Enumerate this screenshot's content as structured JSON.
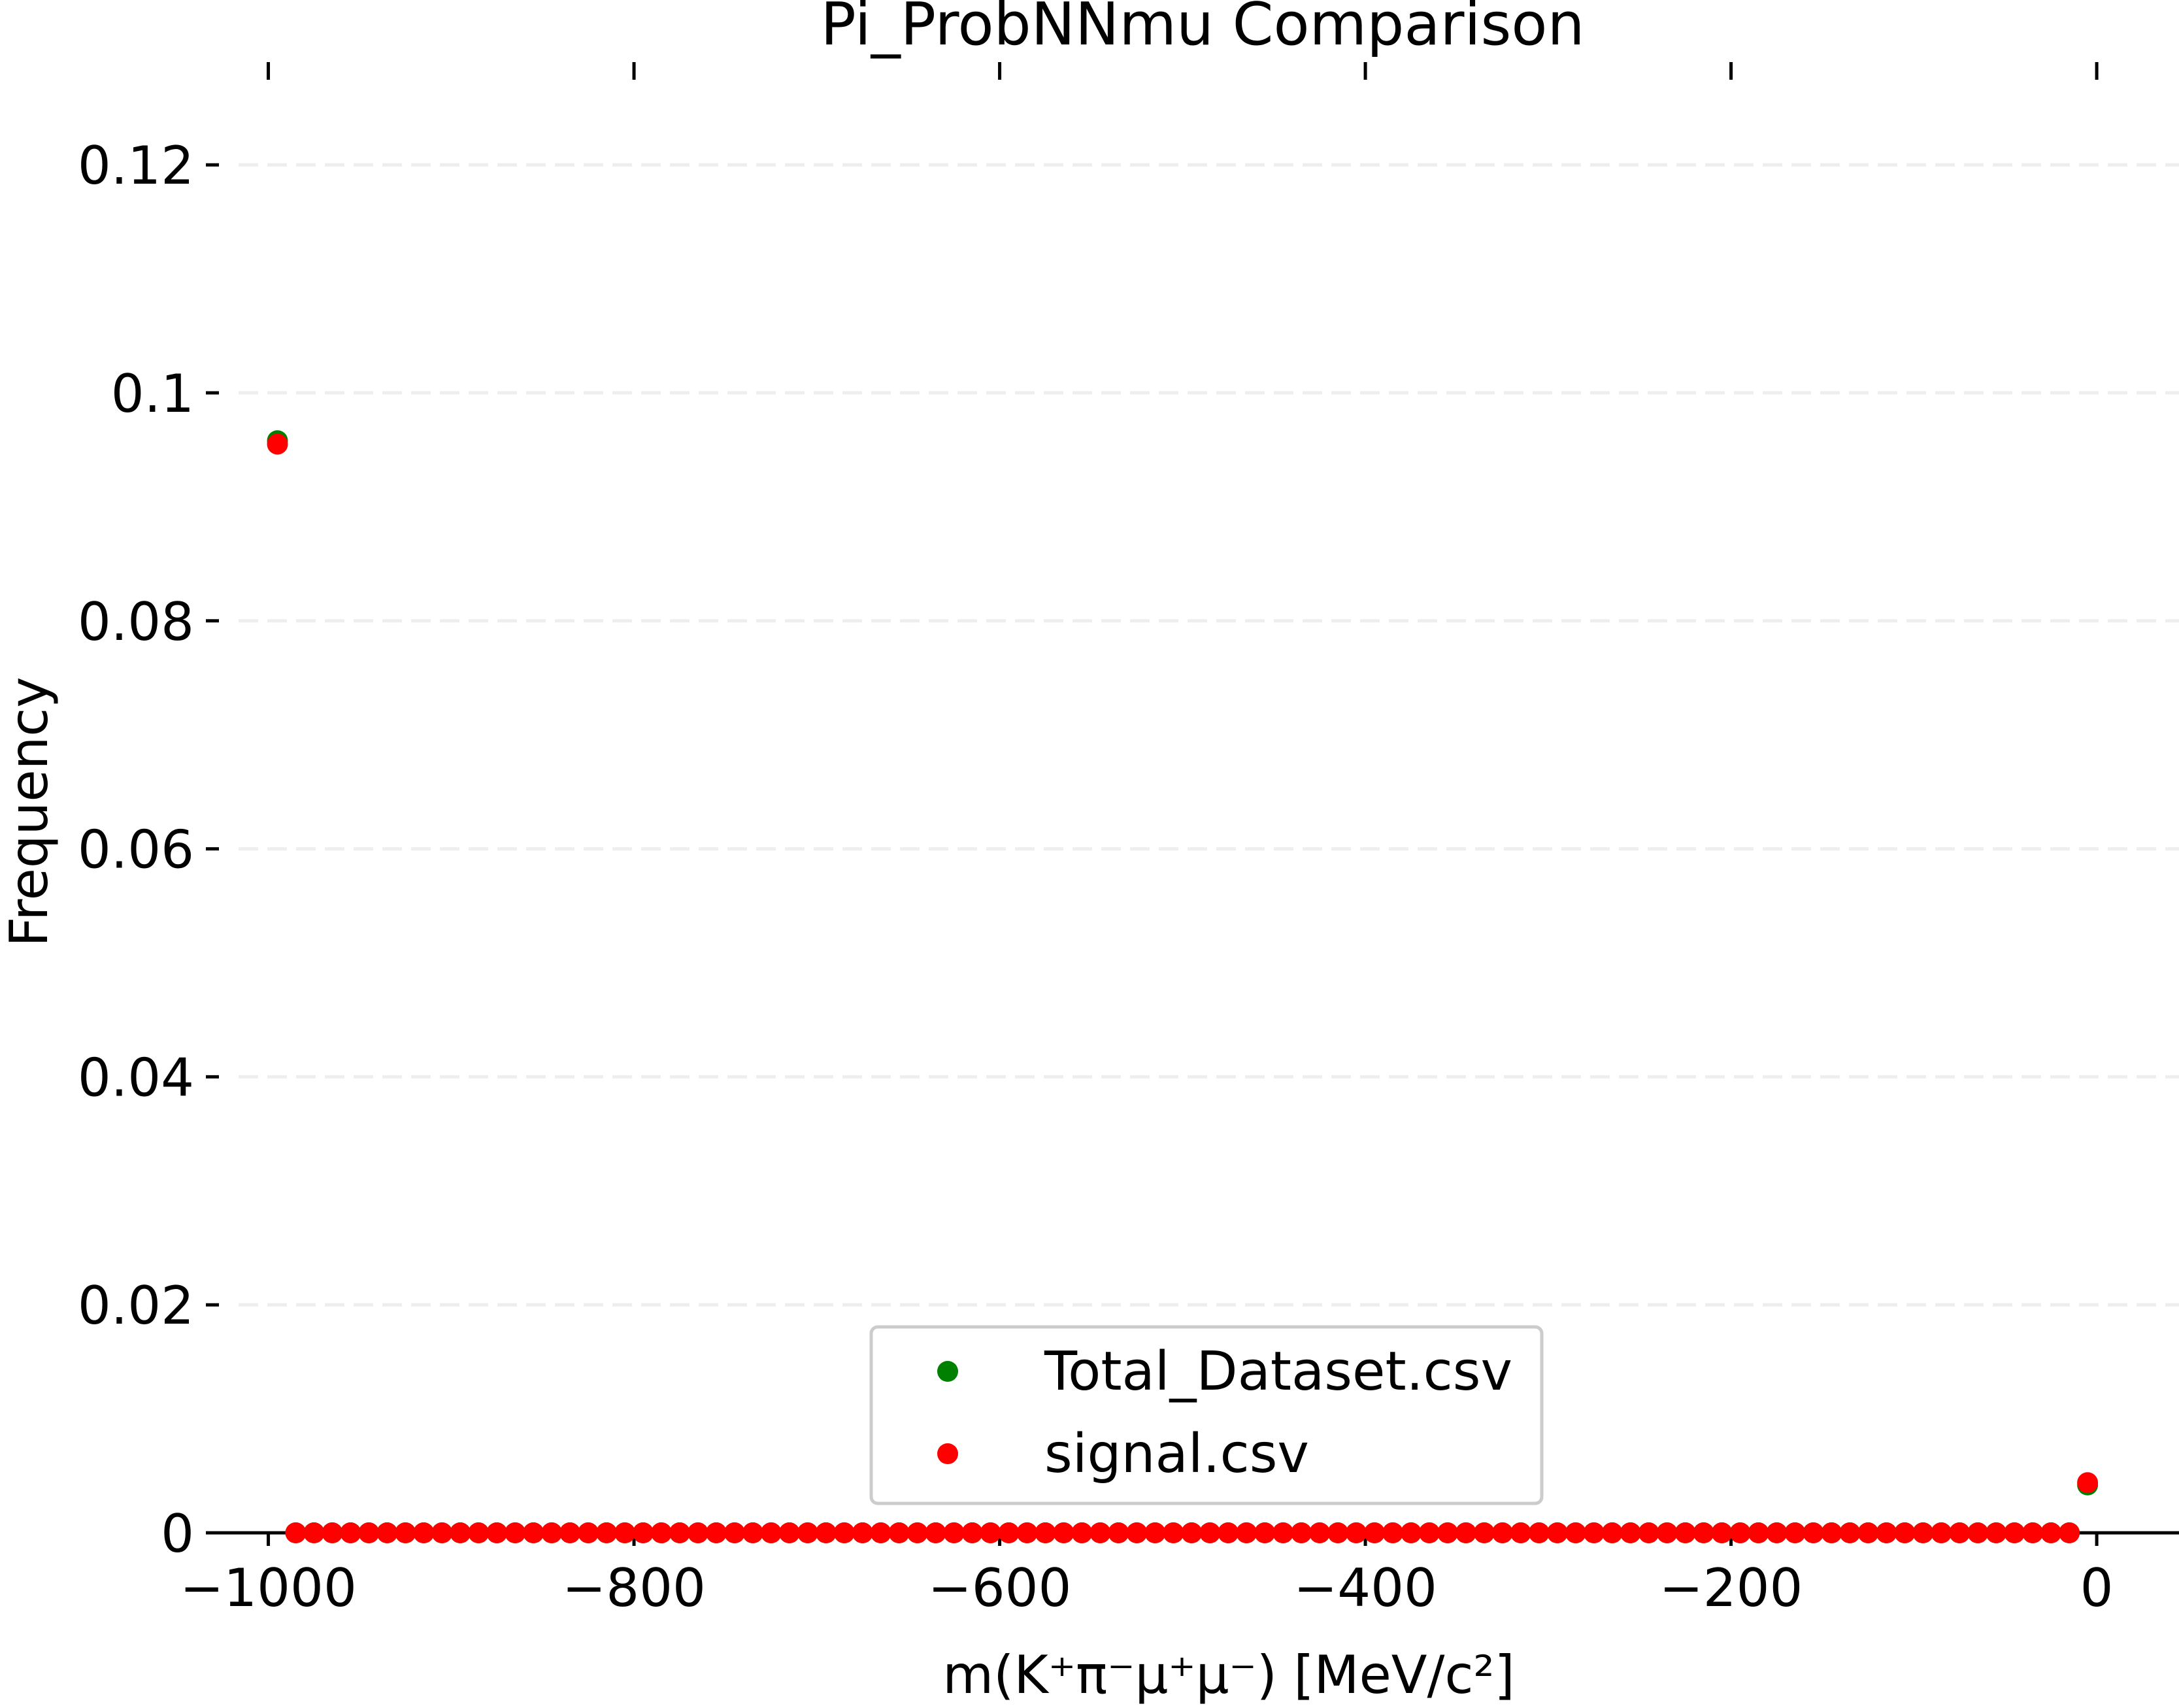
{
  "chart_data": {
    "type": "scatter",
    "title": "Pi_ProbNNmu Comparison",
    "xlabel": "m(K⁺π⁻μ⁺μ⁻) [MeV/c²]",
    "ylabel": "Frequency",
    "xlim": [
      -1027,
      45
    ],
    "ylim": [
      0,
      0.125
    ],
    "x_ticks": [
      -1000,
      -800,
      -600,
      -400,
      -200,
      0
    ],
    "x_tick_labels": [
      "−1000",
      "−800",
      "−600",
      "−400",
      "−200",
      "0"
    ],
    "y_ticks": [
      0,
      0.02,
      0.04,
      0.06,
      0.08,
      0.1,
      0.12
    ],
    "y_tick_labels": [
      "0",
      "0.02",
      "0.04",
      "0.06",
      "0.08",
      "0.1",
      "0.12"
    ],
    "grid": "horizontal dashed",
    "legend_position": "lower center",
    "bins": {
      "start": -995,
      "step": 10,
      "count": 100
    },
    "series": [
      {
        "name": "Total_Dataset.csv",
        "color": "#008000",
        "values_nonzero": [
          {
            "x": -995,
            "y": 0.0958
          },
          {
            "x": -5,
            "y": 0.0042
          }
        ],
        "default_value": 0
      },
      {
        "name": "signal.csv",
        "color": "#ff0000",
        "values_nonzero": [
          {
            "x": -995,
            "y": 0.0955
          },
          {
            "x": -5,
            "y": 0.0044
          }
        ],
        "default_value": 0
      }
    ]
  }
}
